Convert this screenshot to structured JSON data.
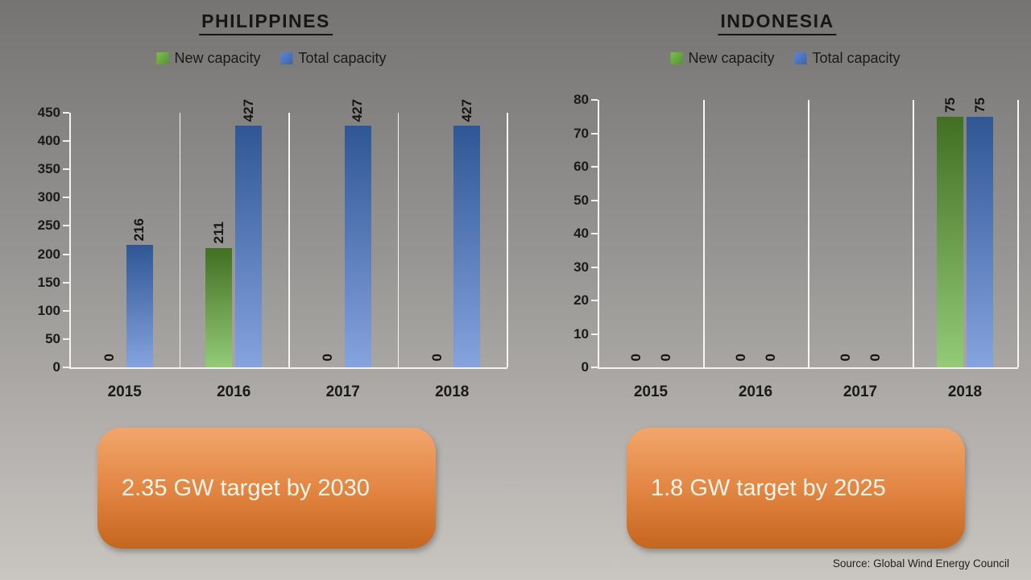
{
  "chart_data": [
    {
      "type": "bar",
      "title": "PHILIPPINES",
      "categories": [
        "2015",
        "2016",
        "2017",
        "2018"
      ],
      "series": [
        {
          "name": "New capacity",
          "values": [
            0,
            211,
            0,
            0
          ]
        },
        {
          "name": "Total capacity",
          "values": [
            216,
            427,
            427,
            427
          ]
        }
      ],
      "ylim": [
        0,
        450
      ],
      "ytick_step": 50,
      "legend_position": "top",
      "grid": "vertical category separators only",
      "data_labels": "values shown rotated 90 degrees above bars"
    },
    {
      "type": "bar",
      "title": "INDONESIA",
      "categories": [
        "2015",
        "2016",
        "2017",
        "2018"
      ],
      "series": [
        {
          "name": "New capacity",
          "values": [
            0,
            0,
            0,
            75
          ]
        },
        {
          "name": "Total capacity",
          "values": [
            0,
            0,
            0,
            75
          ]
        }
      ],
      "ylim": [
        0,
        80
      ],
      "ytick_step": 10,
      "legend_position": "top",
      "grid": "vertical category separators only",
      "data_labels": "values shown rotated 90 degrees above bars"
    }
  ],
  "targets": [
    {
      "label": "2.35 GW target by 2030"
    },
    {
      "label": "1.8 GW target by 2025"
    }
  ],
  "source": "Source: Global Wind Energy Council",
  "colors": {
    "new_capacity_top": "#426F22",
    "new_capacity_bottom": "#93CB77",
    "total_capacity_top": "#2F5694",
    "total_capacity_bottom": "#85A3DF",
    "legend_new_top": "#7CBE4E",
    "legend_new_bottom": "#55942F",
    "legend_total_top": "#5C85D6",
    "legend_total_bottom": "#3C64A8",
    "target_box_top": "#F2A66C",
    "target_box_bottom": "#C4661F",
    "axis_line": "#F4F3F1",
    "text": "#1A1A1A"
  }
}
